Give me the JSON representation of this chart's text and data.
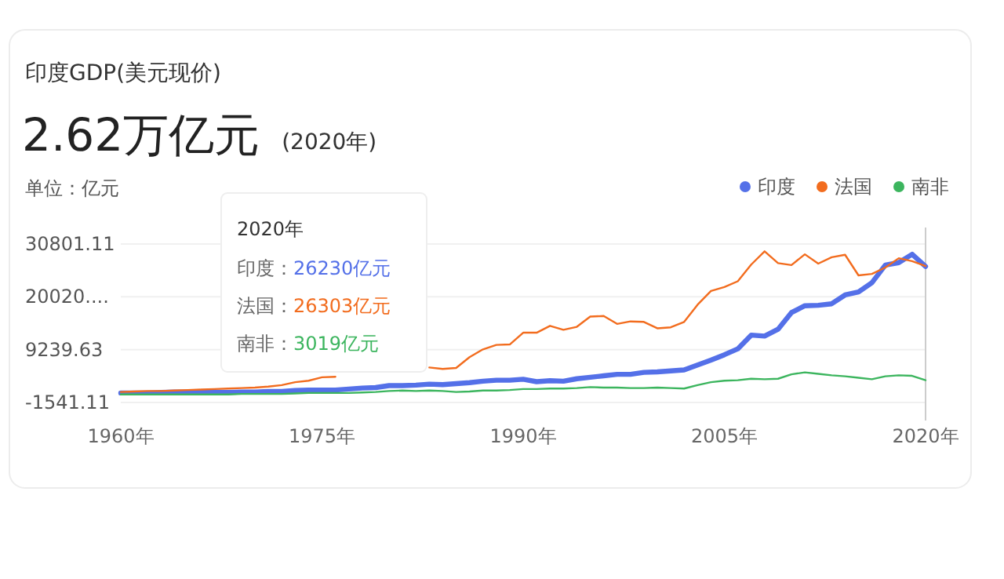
{
  "chart_data": {
    "type": "line",
    "title": "印度GDP(美元现价)",
    "subtitle": "2.62万亿元",
    "ylabel": "单位：亿元",
    "annotations": [
      "(2020年)",
      "2020年",
      "印度：26230亿元",
      "法国：26303亿元",
      "南非：3019亿元"
    ],
    "x": [
      1960,
      1961,
      1962,
      1963,
      1964,
      1965,
      1966,
      1967,
      1968,
      1969,
      1970,
      1971,
      1972,
      1973,
      1974,
      1975,
      1976,
      1977,
      1978,
      1979,
      1980,
      1981,
      1982,
      1983,
      1984,
      1985,
      1986,
      1987,
      1988,
      1989,
      1990,
      1991,
      1992,
      1993,
      1994,
      1995,
      1996,
      1997,
      1998,
      1999,
      2000,
      2001,
      2002,
      2003,
      2004,
      2005,
      2006,
      2007,
      2008,
      2009,
      2010,
      2011,
      2012,
      2013,
      2014,
      2015,
      2016,
      2017,
      2018,
      2019,
      2020
    ],
    "series": [
      {
        "name": "印度",
        "color": "#5470e8",
        "values": [
          400,
          400,
          400,
          500,
          600,
          600,
          500,
          500,
          500,
          600,
          600,
          700,
          700,
          900,
          1000,
          1000,
          1000,
          1200,
          1400,
          1500,
          1900,
          1900,
          2000,
          2200,
          2100,
          2300,
          2500,
          2800,
          3000,
          3000,
          3200,
          2700,
          2900,
          2800,
          3300,
          3600,
          3900,
          4200,
          4200,
          4600,
          4700,
          4900,
          5100,
          6100,
          7100,
          8200,
          9400,
          12200,
          12000,
          13400,
          16800,
          18200,
          18300,
          18600,
          20400,
          21000,
          22900,
          26500,
          27000,
          28700,
          26230
        ]
      },
      {
        "name": "法国",
        "color": "#f26c1e",
        "values": [
          600,
          700,
          800,
          800,
          900,
          1000,
          1100,
          1200,
          1300,
          1400,
          1500,
          1700,
          2000,
          2600,
          2900,
          3600,
          3700,
          null,
          null,
          null,
          null,
          null,
          null,
          5600,
          5300,
          5500,
          7700,
          9300,
          10200,
          10300,
          12700,
          12700,
          14100,
          13300,
          13900,
          16000,
          16100,
          14500,
          15000,
          14900,
          13600,
          13800,
          14900,
          18400,
          21200,
          22000,
          23200,
          26600,
          29300,
          26900,
          26500,
          28700,
          26800,
          28100,
          28600,
          24400,
          24700,
          26000,
          27900,
          27300,
          26303
        ]
      },
      {
        "name": "南非",
        "color": "#3cb55e",
        "values": [
          100,
          100,
          100,
          100,
          100,
          100,
          100,
          100,
          100,
          200,
          200,
          200,
          200,
          300,
          400,
          400,
          400,
          400,
          500,
          600,
          800,
          900,
          800,
          900,
          800,
          600,
          700,
          900,
          900,
          1000,
          1200,
          1200,
          1300,
          1300,
          1400,
          1600,
          1500,
          1500,
          1400,
          1400,
          1500,
          1400,
          1300,
          2000,
          2600,
          2900,
          3000,
          3300,
          3200,
          3300,
          4200,
          4600,
          4300,
          4000,
          3800,
          3500,
          3200,
          3800,
          4000,
          3900,
          3019
        ]
      }
    ],
    "xlim": [
      1960,
      2020
    ],
    "ylim": [
      -1541.11,
      30801.11
    ],
    "xticks": [
      {
        "value": 1960,
        "label": "1960年"
      },
      {
        "value": 1975,
        "label": "1975年"
      },
      {
        "value": 1990,
        "label": "1990年"
      },
      {
        "value": 2005,
        "label": "2005年"
      },
      {
        "value": 2020,
        "label": "2020年"
      }
    ],
    "yticks": [
      -1541.11,
      9239.63,
      {
        "value": 20020.37,
        "label": "20020...."
      },
      30801.11
    ],
    "ref_lines": [
      {
        "axis": "x",
        "value": 2020,
        "color": "#cccccc"
      }
    ],
    "grid": "y",
    "legend": "top right"
  }
}
